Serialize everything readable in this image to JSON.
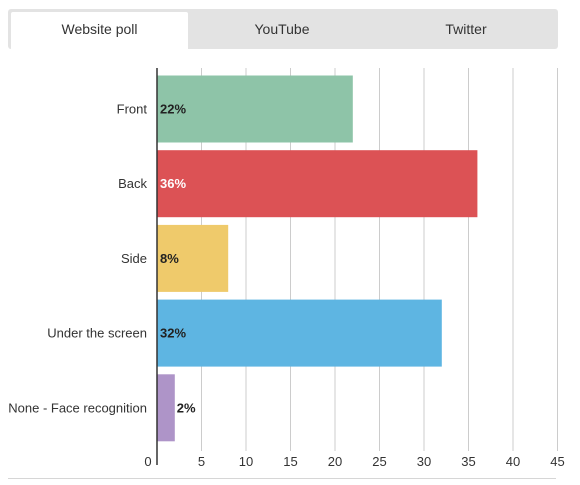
{
  "tabs": [
    {
      "label": "Website poll",
      "active": true
    },
    {
      "label": "YouTube",
      "active": false
    },
    {
      "label": "Twitter",
      "active": false
    }
  ],
  "chart_data": {
    "type": "bar",
    "orientation": "horizontal",
    "categories": [
      "Front",
      "Back",
      "Side",
      "Under the screen",
      "None - Face recognition"
    ],
    "values": [
      22,
      36,
      8,
      32,
      2
    ],
    "data_labels": [
      "22%",
      "36%",
      "8%",
      "32%",
      "2%"
    ],
    "colors": [
      "#8ec4a8",
      "#dc5255",
      "#efca6b",
      "#5eb5e2",
      "#ae94c8"
    ],
    "label_colors": [
      "#222222",
      "#ffffff",
      "#222222",
      "#222222",
      "#222222"
    ],
    "xlim": [
      0,
      45
    ],
    "xticks": [
      0,
      5,
      10,
      15,
      20,
      25,
      30,
      35,
      40,
      45
    ],
    "grid": true,
    "title": "",
    "xlabel": "",
    "ylabel": ""
  }
}
